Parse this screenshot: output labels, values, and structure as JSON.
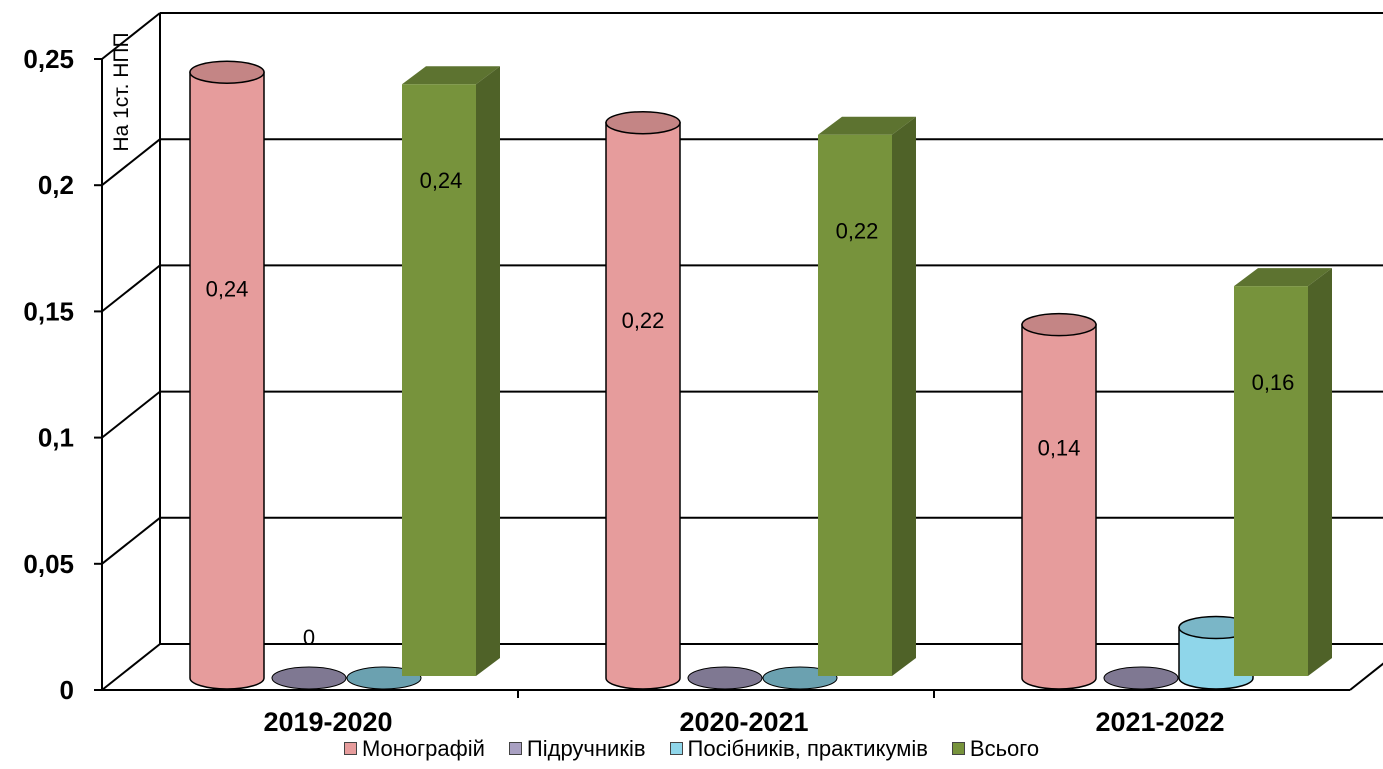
{
  "chart_data": {
    "type": "bar",
    "ylabel": "На 1ст. НПП",
    "xlabel": "",
    "ylim": [
      0,
      0.25
    ],
    "y_ticks": [
      "0",
      "0,05",
      "0,1",
      "0,15",
      "0,2",
      "0,25"
    ],
    "categories": [
      "2019-2020",
      "2020-2021",
      "2021-2022"
    ],
    "series": [
      {
        "name": "Монографій",
        "values": [
          0.24,
          0.22,
          0.14
        ],
        "labels": [
          "0,24",
          "0,22",
          "0,14"
        ],
        "color": "#e69c9c",
        "shape": "cylinder"
      },
      {
        "name": "Підручників",
        "values": [
          0,
          0,
          0
        ],
        "labels": [
          "0",
          "",
          ""
        ],
        "color": "#a9a0c2",
        "shape": "cylinder"
      },
      {
        "name": "Посібників, практикумів",
        "values": [
          0,
          0,
          0.02
        ],
        "labels": [
          "",
          "",
          ""
        ],
        "color": "#8fd6ea",
        "shape": "cylinder"
      },
      {
        "name": "Всього",
        "values": [
          0.24,
          0.22,
          0.16
        ],
        "labels": [
          "0,24",
          "0,22",
          "0,16"
        ],
        "color": "#77933c",
        "shape": "box"
      }
    ],
    "grid": true,
    "legend_position": "bottom"
  },
  "colors": {
    "gridline": "#000000",
    "box_side": "#4f6228",
    "box_top": "#5d7330"
  }
}
